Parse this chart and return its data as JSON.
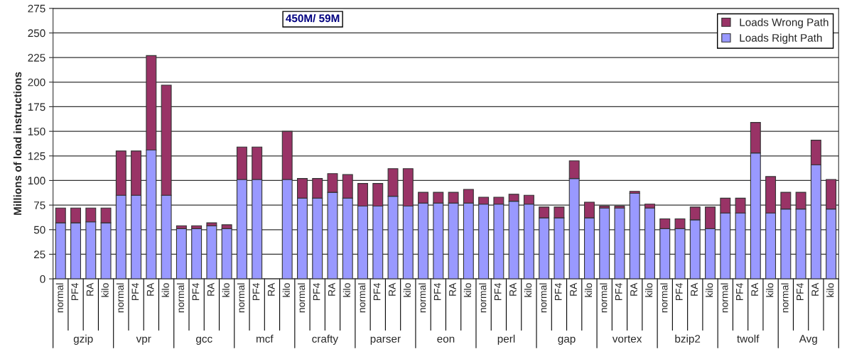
{
  "chart_data": {
    "type": "bar",
    "stacked": true,
    "ylabel": "Millions of load instructions",
    "categories": [
      "normal",
      "PF4",
      "RA",
      "kilo",
      "normal",
      "PF4",
      "RA",
      "kilo",
      "normal",
      "PF4",
      "RA",
      "kilo",
      "normal",
      "PF4",
      "RA",
      "kilo",
      "normal",
      "PF4",
      "RA",
      "kilo",
      "normal",
      "PF4",
      "RA",
      "kilo",
      "normal",
      "PF4",
      "RA",
      "kilo",
      "normal",
      "PF4",
      "RA",
      "kilo",
      "normal",
      "PF4",
      "RA",
      "kilo",
      "normal",
      "PF4",
      "RA",
      "kilo",
      "normal",
      "PF4",
      "RA",
      "kilo",
      "normal",
      "PF4",
      "RA",
      "kilo",
      "normal",
      "PF4",
      "RA",
      "kilo"
    ],
    "series": [
      {
        "name": "Loads Right Path",
        "color": "#9999ff",
        "values": [
          57,
          57,
          58,
          57,
          85,
          85,
          131,
          85,
          51,
          51,
          54,
          51,
          101,
          101,
          null,
          101,
          82,
          82,
          88,
          82,
          74,
          74,
          84,
          74,
          77,
          77,
          77,
          77,
          76,
          76,
          79,
          76,
          62,
          62,
          102,
          62,
          72,
          72,
          87,
          72,
          51,
          51,
          60,
          51,
          67,
          67,
          128,
          67,
          71,
          71,
          116,
          71
        ]
      },
      {
        "name": "Loads Wrong Path",
        "color": "#993366",
        "values": [
          15,
          15,
          14,
          15,
          45,
          45,
          96,
          112,
          3,
          3,
          3,
          4,
          33,
          33,
          null,
          49,
          20,
          20,
          19,
          24,
          23,
          23,
          28,
          38,
          11,
          11,
          11,
          14,
          7,
          7,
          7,
          9,
          11,
          11,
          18,
          16,
          2,
          2,
          2,
          4,
          10,
          10,
          13,
          22,
          15,
          15,
          31,
          37,
          17,
          17,
          25,
          30
        ]
      }
    ],
    "annotations": [
      "450M/ 59M",
      "gzip",
      "vpr",
      "gcc",
      "mcf",
      "crafty",
      "parser",
      "eon",
      "perl",
      "gap",
      "vortex",
      "bzip2",
      "twolf",
      "Avg"
    ],
    "ylim": [
      0,
      275
    ],
    "yticks": [
      0,
      25,
      50,
      75,
      100,
      125,
      150,
      175,
      200,
      225,
      250,
      275
    ],
    "grid": "y",
    "legend": "top right"
  }
}
